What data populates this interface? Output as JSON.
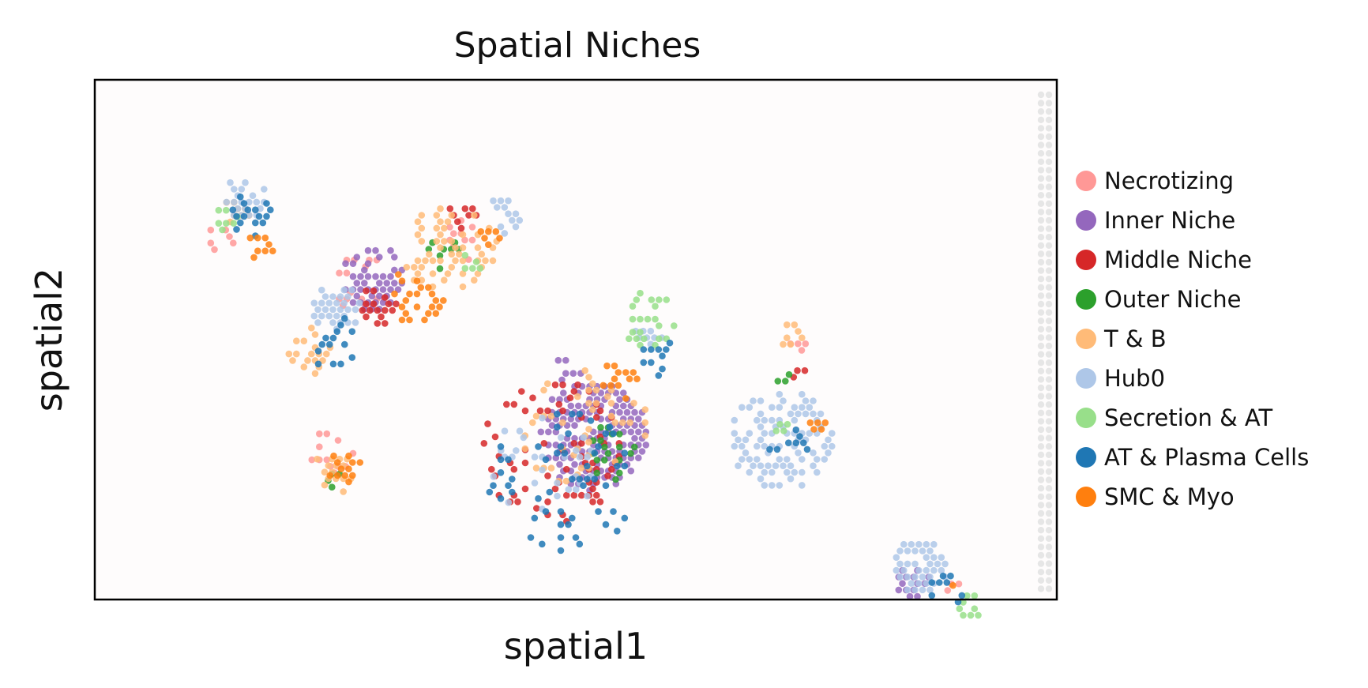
{
  "chart_data": {
    "type": "scatter",
    "title": "Spatial Niches",
    "xlabel": "spatial1",
    "ylabel": "spatial2",
    "xticks": [],
    "yticks": [],
    "grid": false,
    "legend_placement": "right",
    "series": [
      {
        "name": "Necrotizing",
        "color": "#ff9896",
        "clusters": [
          {
            "center": [
              340,
              260
            ],
            "radius": 40,
            "count": 16
          },
          {
            "center": [
              470,
              200
            ],
            "radius": 30,
            "count": 10
          },
          {
            "center": [
              300,
              470
            ],
            "radius": 30,
            "count": 12
          },
          {
            "center": [
              160,
              200
            ],
            "radius": 18,
            "count": 6
          },
          {
            "center": [
              890,
              340
            ],
            "radius": 14,
            "count": 4
          },
          {
            "center": [
              1085,
              640
            ],
            "radius": 10,
            "count": 3
          }
        ]
      },
      {
        "name": "Inner Niche",
        "color": "#9467bd",
        "clusters": [
          {
            "center": [
              630,
              450
            ],
            "radius": 70,
            "count": 140
          },
          {
            "center": [
              350,
              250
            ],
            "radius": 42,
            "count": 45
          },
          {
            "center": [
              1035,
              635
            ],
            "radius": 22,
            "count": 14
          },
          {
            "center": [
              600,
              365
            ],
            "radius": 18,
            "count": 6
          }
        ]
      },
      {
        "name": "Middle Niche",
        "color": "#d62728",
        "clusters": [
          {
            "center": [
              580,
              470
            ],
            "radius": 92,
            "count": 70
          },
          {
            "center": [
              360,
              285
            ],
            "radius": 26,
            "count": 16
          },
          {
            "center": [
              465,
              175
            ],
            "radius": 20,
            "count": 8
          },
          {
            "center": [
              890,
              370
            ],
            "radius": 10,
            "count": 3
          }
        ]
      },
      {
        "name": "Outer Niche",
        "color": "#2ca02c",
        "clusters": [
          {
            "center": [
              650,
              470
            ],
            "radius": 38,
            "count": 18
          },
          {
            "center": [
              440,
              220
            ],
            "radius": 22,
            "count": 8
          },
          {
            "center": [
              300,
              505
            ],
            "radius": 14,
            "count": 4
          },
          {
            "center": [
              870,
              375
            ],
            "radius": 10,
            "count": 3
          }
        ]
      },
      {
        "name": "T & B",
        "color": "#ffbb78",
        "clusters": [
          {
            "center": [
              450,
              215
            ],
            "radius": 60,
            "count": 55
          },
          {
            "center": [
              620,
              440
            ],
            "radius": 80,
            "count": 45
          },
          {
            "center": [
              275,
              340
            ],
            "radius": 34,
            "count": 18
          },
          {
            "center": [
              300,
              500
            ],
            "radius": 28,
            "count": 15
          },
          {
            "center": [
              880,
              320
            ],
            "radius": 18,
            "count": 7
          },
          {
            "center": [
              180,
              165
            ],
            "radius": 18,
            "count": 8
          }
        ]
      },
      {
        "name": "Hub0",
        "color": "#aec7e8",
        "clusters": [
          {
            "center": [
              870,
              455
            ],
            "radius": 65,
            "count": 90
          },
          {
            "center": [
              1045,
              615
            ],
            "radius": 35,
            "count": 40
          },
          {
            "center": [
              305,
              290
            ],
            "radius": 32,
            "count": 30
          },
          {
            "center": [
              190,
              150
            ],
            "radius": 28,
            "count": 20
          },
          {
            "center": [
              520,
              170
            ],
            "radius": 25,
            "count": 12
          },
          {
            "center": [
              570,
              490
            ],
            "radius": 70,
            "count": 30
          },
          {
            "center": [
              700,
              330
            ],
            "radius": 20,
            "count": 8
          }
        ]
      },
      {
        "name": "Secretion & AT",
        "color": "#98df8a",
        "clusters": [
          {
            "center": [
              700,
              300
            ],
            "radius": 38,
            "count": 22
          },
          {
            "center": [
              1110,
              665
            ],
            "radius": 20,
            "count": 8
          },
          {
            "center": [
              170,
              175
            ],
            "radius": 18,
            "count": 7
          },
          {
            "center": [
              480,
              230
            ],
            "radius": 16,
            "count": 5
          },
          {
            "center": [
              870,
              440
            ],
            "radius": 12,
            "count": 4
          }
        ]
      },
      {
        "name": "AT & Plasma Cells",
        "color": "#1f77b4",
        "clusters": [
          {
            "center": [
              590,
              510
            ],
            "radius": 95,
            "count": 55
          },
          {
            "center": [
              200,
              170
            ],
            "radius": 30,
            "count": 16
          },
          {
            "center": [
              300,
              330
            ],
            "radius": 36,
            "count": 14
          },
          {
            "center": [
              715,
              350
            ],
            "radius": 25,
            "count": 10
          },
          {
            "center": [
              875,
              465
            ],
            "radius": 30,
            "count": 8
          },
          {
            "center": [
              1080,
              645
            ],
            "radius": 25,
            "count": 8
          }
        ]
      },
      {
        "name": "SMC & Myo",
        "color": "#ff7f0e",
        "clusters": [
          {
            "center": [
              410,
              270
            ],
            "radius": 40,
            "count": 22
          },
          {
            "center": [
              315,
              490
            ],
            "radius": 22,
            "count": 12
          },
          {
            "center": [
              665,
              380
            ],
            "radius": 26,
            "count": 12
          },
          {
            "center": [
              210,
              210
            ],
            "radius": 18,
            "count": 8
          },
          {
            "center": [
              500,
              200
            ],
            "radius": 16,
            "count": 6
          },
          {
            "center": [
              915,
              440
            ],
            "radius": 14,
            "count": 5
          },
          {
            "center": [
              1085,
              640
            ],
            "radius": 8,
            "count": 2
          }
        ]
      }
    ]
  }
}
